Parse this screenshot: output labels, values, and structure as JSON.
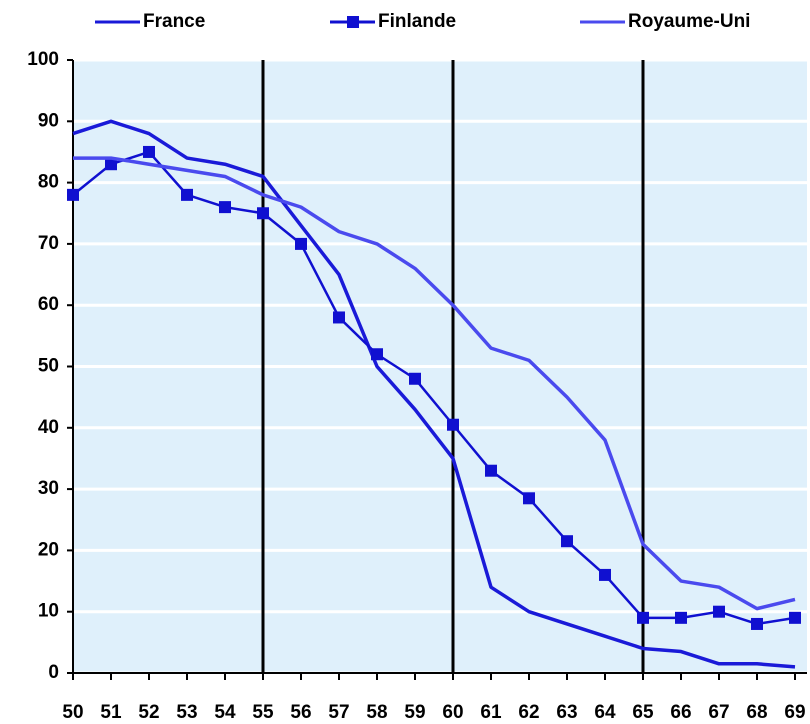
{
  "chart_data": {
    "type": "line",
    "x": [
      50,
      51,
      52,
      53,
      54,
      55,
      56,
      57,
      58,
      59,
      60,
      61,
      62,
      63,
      64,
      65,
      66,
      67,
      68,
      69
    ],
    "xlim": [
      50,
      69
    ],
    "xticks": [
      50,
      51,
      52,
      53,
      54,
      55,
      56,
      57,
      58,
      59,
      60,
      61,
      62,
      63,
      64,
      65,
      66,
      67,
      68,
      69
    ],
    "vlines": [
      55,
      60,
      65
    ],
    "ylim": [
      0,
      100
    ],
    "yticks": [
      0,
      10,
      20,
      30,
      40,
      50,
      60,
      70,
      80,
      90,
      100
    ],
    "grid": true,
    "background": "#dff0fb",
    "series": [
      {
        "name": "France",
        "color": "#1a1ad8",
        "marker": false,
        "values": [
          88,
          90,
          88,
          84,
          83,
          81,
          73,
          65,
          50,
          43,
          35,
          14,
          10,
          8,
          6,
          4,
          3.5,
          1.5,
          1.5,
          1
        ]
      },
      {
        "name": "Finlande",
        "color": "#1010d0",
        "marker": true,
        "values": [
          78,
          83,
          85,
          78,
          76,
          75,
          70,
          58,
          52,
          48,
          40.5,
          33,
          28.5,
          21.5,
          16,
          9,
          9,
          10,
          8,
          9
        ]
      },
      {
        "name": "Royaume-Uni",
        "color": "#4a4aee",
        "marker": false,
        "values": [
          84,
          84,
          83,
          82,
          81,
          78,
          76,
          72,
          70,
          66,
          60,
          53,
          51,
          45,
          38,
          21,
          15,
          14,
          10.5,
          12
        ]
      }
    ]
  }
}
